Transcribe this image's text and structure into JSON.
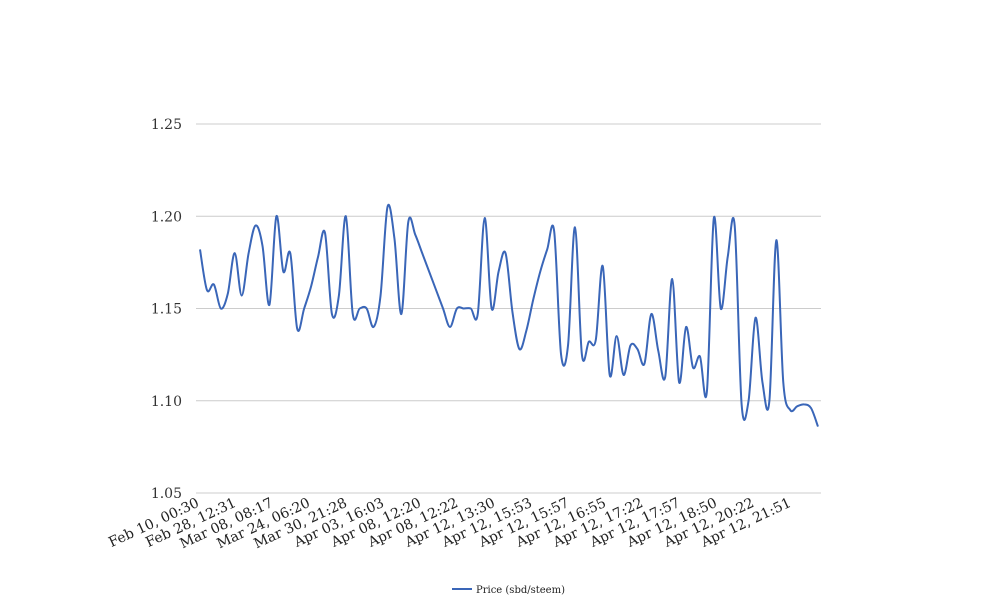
{
  "chart_data": {
    "type": "line",
    "title": "",
    "xlabel": "",
    "ylabel": "",
    "ylim": [
      1.05,
      1.25
    ],
    "y_ticks": [
      "1.05",
      "1.10",
      "1.15",
      "1.20",
      "1.25"
    ],
    "x_tick_labels": [
      "Feb 10, 00:30",
      "Feb 28, 12:31",
      "Mar 08, 08:17",
      "Mar 24, 06:20",
      "Mar 30, 21:28",
      "Apr 03, 16:03",
      "Apr 08, 12:20",
      "Apr 08, 12:22",
      "Apr 12, 13:30",
      "Apr 12, 15:53",
      "Apr 12, 15:57",
      "Apr 12, 16:55",
      "Apr 12, 17:22",
      "Apr 12, 17:57",
      "Apr 12, 18:50",
      "Apr 12, 20:22",
      "Apr 12, 21:51"
    ],
    "grid": true,
    "legend_position": "bottom",
    "series": [
      {
        "name": "Price (sbd/steem)",
        "color": "#3a66b8",
        "values": [
          1.182,
          1.16,
          1.163,
          1.15,
          1.158,
          1.18,
          1.157,
          1.18,
          1.195,
          1.184,
          1.152,
          1.2,
          1.17,
          1.18,
          1.139,
          1.15,
          1.162,
          1.178,
          1.191,
          1.147,
          1.157,
          1.2,
          1.147,
          1.15,
          1.15,
          1.14,
          1.157,
          1.205,
          1.188,
          1.147,
          1.197,
          1.19,
          1.18,
          1.17,
          1.16,
          1.15,
          1.14,
          1.15,
          1.15,
          1.15,
          1.147,
          1.199,
          1.15,
          1.17,
          1.18,
          1.148,
          1.128,
          1.138,
          1.155,
          1.17,
          1.182,
          1.192,
          1.125,
          1.13,
          1.194,
          1.125,
          1.132,
          1.133,
          1.173,
          1.114,
          1.135,
          1.114,
          1.13,
          1.128,
          1.12,
          1.147,
          1.127,
          1.113,
          1.166,
          1.11,
          1.14,
          1.118,
          1.124,
          1.105,
          1.199,
          1.15,
          1.178,
          1.195,
          1.098,
          1.1,
          1.145,
          1.11,
          1.1,
          1.187,
          1.11,
          1.095,
          1.097,
          1.098,
          1.096,
          1.086
        ]
      }
    ]
  }
}
